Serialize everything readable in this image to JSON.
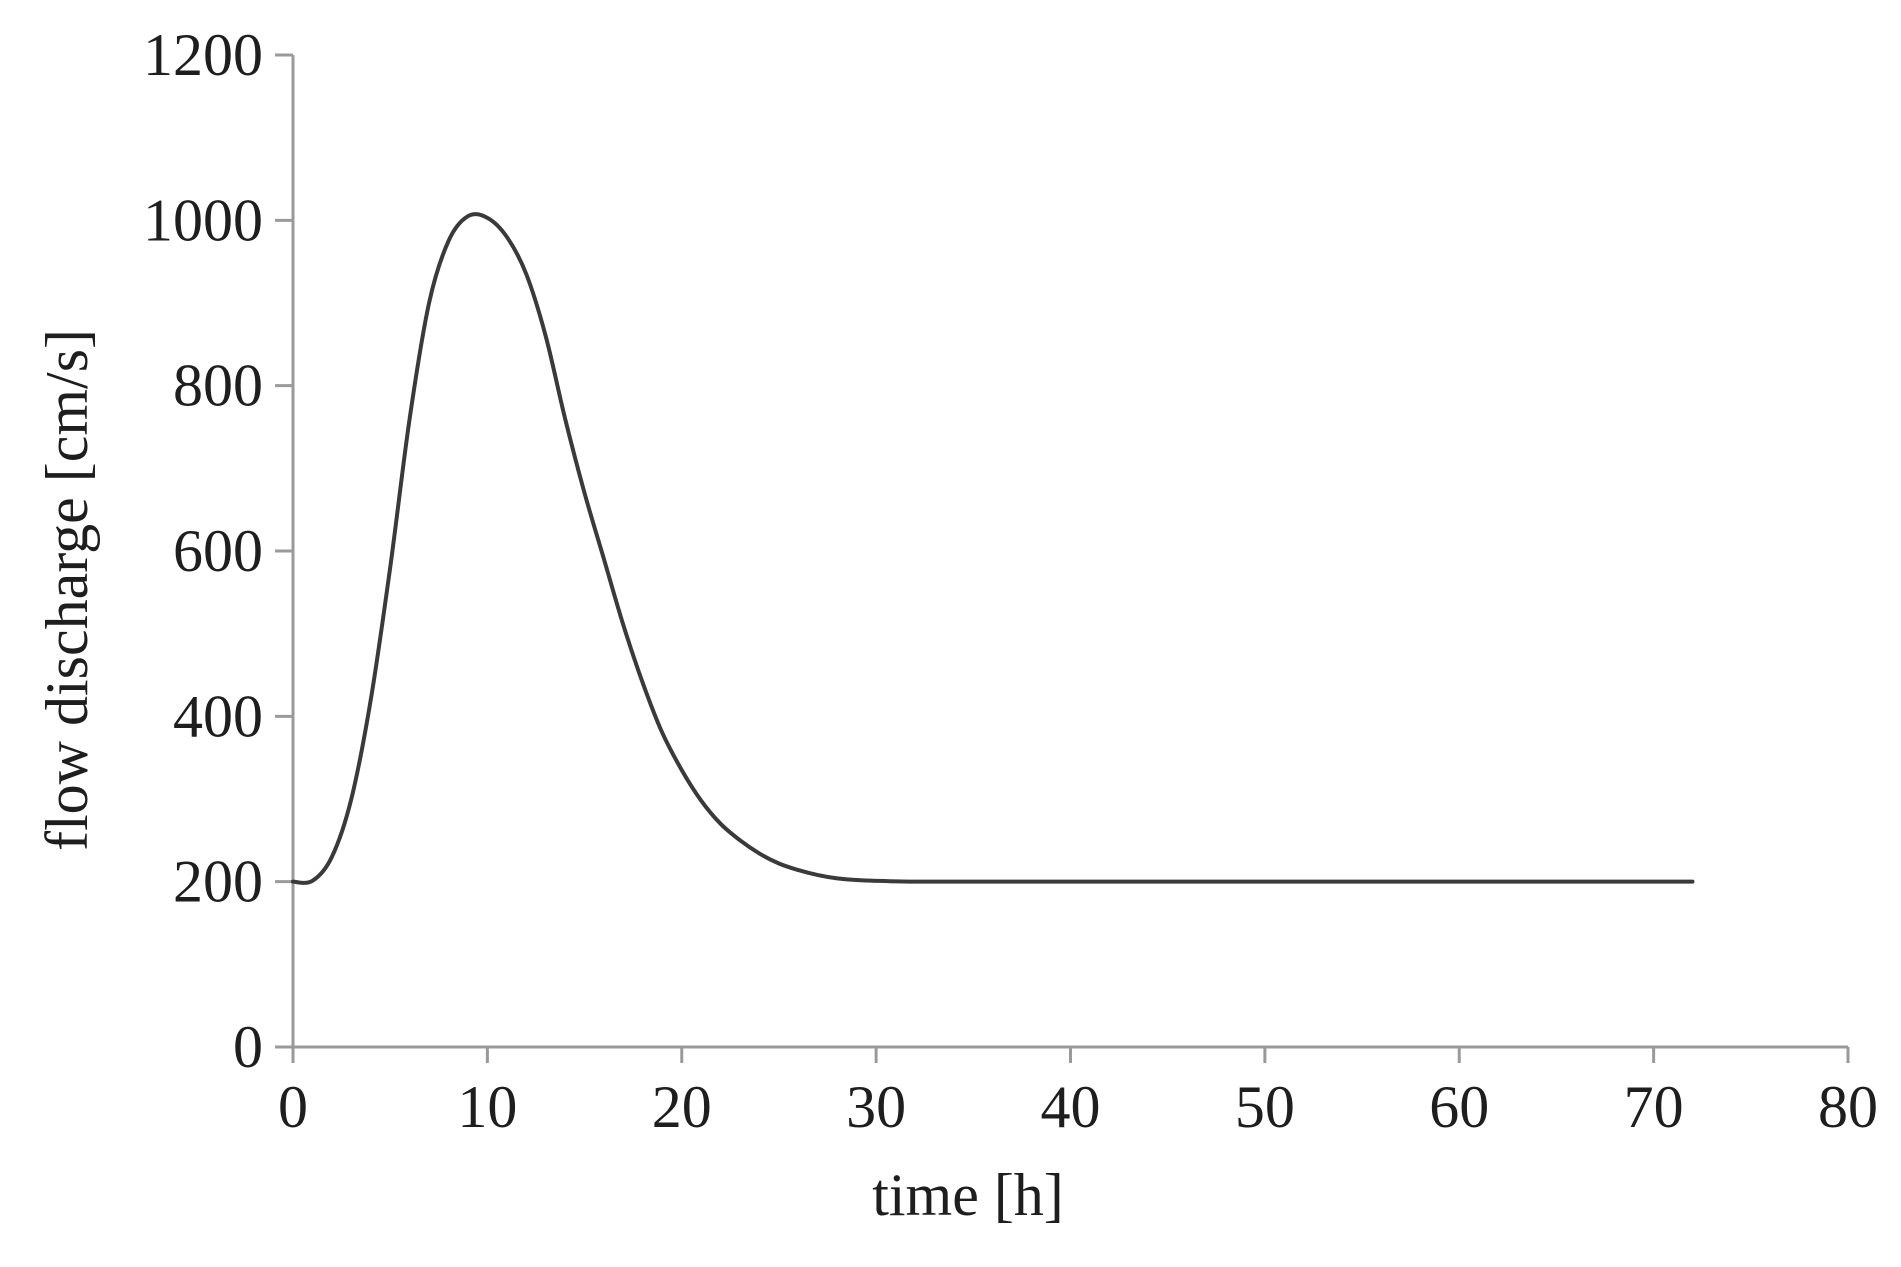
{
  "chart_data": {
    "type": "line",
    "title": "",
    "xlabel": "time [h]",
    "ylabel": "flow discharge [cm/s]",
    "xlim": [
      0,
      80
    ],
    "ylim": [
      0,
      1200
    ],
    "x_ticks": [
      "0",
      "10",
      "20",
      "30",
      "40",
      "50",
      "60",
      "70",
      "80"
    ],
    "y_ticks": [
      "0",
      "200",
      "400",
      "600",
      "800",
      "1000",
      "1200"
    ],
    "grid": false,
    "legend": "none",
    "series": [
      {
        "color": "#3a3a3a",
        "points": [
          [
            0,
            200
          ],
          [
            1,
            201
          ],
          [
            2,
            230
          ],
          [
            3,
            300
          ],
          [
            4,
            420
          ],
          [
            5,
            580
          ],
          [
            6,
            760
          ],
          [
            7,
            900
          ],
          [
            8,
            975
          ],
          [
            9,
            1005
          ],
          [
            10,
            1003
          ],
          [
            11,
            980
          ],
          [
            12,
            935
          ],
          [
            13,
            860
          ],
          [
            14,
            760
          ],
          [
            15,
            670
          ],
          [
            16,
            590
          ],
          [
            17,
            510
          ],
          [
            18,
            440
          ],
          [
            19,
            380
          ],
          [
            20,
            335
          ],
          [
            21,
            298
          ],
          [
            22,
            270
          ],
          [
            23,
            250
          ],
          [
            24,
            234
          ],
          [
            25,
            222
          ],
          [
            26,
            214
          ],
          [
            27,
            208
          ],
          [
            28,
            204
          ],
          [
            29,
            202
          ],
          [
            30,
            201
          ],
          [
            32,
            200
          ],
          [
            35,
            200
          ],
          [
            40,
            200
          ],
          [
            50,
            200
          ],
          [
            60,
            200
          ],
          [
            70,
            200
          ],
          [
            72,
            200
          ]
        ]
      }
    ]
  }
}
